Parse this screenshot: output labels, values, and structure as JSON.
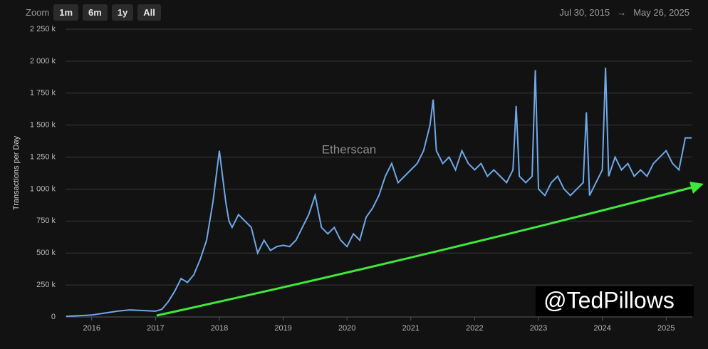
{
  "toolbar": {
    "zoom_label": "Zoom",
    "buttons": [
      "1m",
      "6m",
      "1y",
      "All"
    ],
    "range_start": "Jul 30, 2015",
    "range_arrow": "→",
    "range_end": "May 26, 2025"
  },
  "watermark": "Etherscan",
  "credit": "@TedPillows",
  "chart_data": {
    "type": "line",
    "y_label": "Transactions per Day",
    "x": [
      2015.6,
      2015.8,
      2016.0,
      2016.2,
      2016.4,
      2016.6,
      2016.8,
      2017.0,
      2017.1,
      2017.2,
      2017.3,
      2017.4,
      2017.5,
      2017.6,
      2017.7,
      2017.8,
      2017.9,
      2018.0,
      2018.05,
      2018.1,
      2018.15,
      2018.2,
      2018.3,
      2018.4,
      2018.5,
      2018.6,
      2018.7,
      2018.8,
      2018.9,
      2019.0,
      2019.1,
      2019.2,
      2019.3,
      2019.4,
      2019.5,
      2019.6,
      2019.7,
      2019.8,
      2019.9,
      2020.0,
      2020.1,
      2020.2,
      2020.3,
      2020.4,
      2020.5,
      2020.6,
      2020.7,
      2020.8,
      2020.9,
      2021.0,
      2021.1,
      2021.2,
      2021.3,
      2021.35,
      2021.4,
      2021.5,
      2021.6,
      2021.7,
      2021.8,
      2021.9,
      2022.0,
      2022.1,
      2022.2,
      2022.3,
      2022.4,
      2022.5,
      2022.6,
      2022.65,
      2022.7,
      2022.8,
      2022.9,
      2022.95,
      2023.0,
      2023.1,
      2023.2,
      2023.3,
      2023.4,
      2023.5,
      2023.6,
      2023.7,
      2023.75,
      2023.8,
      2023.9,
      2024.0,
      2024.05,
      2024.1,
      2024.2,
      2024.3,
      2024.4,
      2024.5,
      2024.6,
      2024.7,
      2024.8,
      2024.9,
      2025.0,
      2025.1,
      2025.2,
      2025.3,
      2025.4
    ],
    "series": [
      {
        "name": "Transactions",
        "color": "#6fa8e8",
        "values": [
          5000,
          10000,
          15000,
          30000,
          45000,
          55000,
          50000,
          45000,
          60000,
          120000,
          200000,
          300000,
          270000,
          330000,
          450000,
          600000,
          900000,
          1300000,
          1100000,
          900000,
          750000,
          700000,
          800000,
          750000,
          700000,
          500000,
          600000,
          520000,
          550000,
          560000,
          550000,
          600000,
          700000,
          800000,
          950000,
          700000,
          650000,
          700000,
          600000,
          550000,
          650000,
          600000,
          780000,
          850000,
          950000,
          1100000,
          1200000,
          1050000,
          1100000,
          1150000,
          1200000,
          1300000,
          1500000,
          1700000,
          1300000,
          1200000,
          1250000,
          1150000,
          1300000,
          1200000,
          1150000,
          1200000,
          1100000,
          1150000,
          1100000,
          1050000,
          1150000,
          1650000,
          1100000,
          1050000,
          1100000,
          1930000,
          1000000,
          950000,
          1050000,
          1100000,
          1000000,
          950000,
          1000000,
          1050000,
          1600000,
          950000,
          1050000,
          1150000,
          1950000,
          1100000,
          1250000,
          1150000,
          1200000,
          1100000,
          1150000,
          1100000,
          1200000,
          1250000,
          1300000,
          1200000,
          1150000,
          1400000,
          1400000
        ]
      }
    ],
    "xlim": [
      2015.59,
      2025.41
    ],
    "xticks": [
      2016,
      2017,
      2018,
      2019,
      2020,
      2021,
      2022,
      2023,
      2024,
      2025
    ],
    "ylim": [
      0,
      2250000
    ],
    "yticks": [
      {
        "value": 0,
        "label": "0"
      },
      {
        "value": 250000,
        "label": "250 k"
      },
      {
        "value": 500000,
        "label": "500 k"
      },
      {
        "value": 750000,
        "label": "750 k"
      },
      {
        "value": 1000000,
        "label": "1 000 k"
      },
      {
        "value": 1250000,
        "label": "1 250 k"
      },
      {
        "value": 1500000,
        "label": "1 500 k"
      },
      {
        "value": 1750000,
        "label": "1 750 k"
      },
      {
        "value": 2000000,
        "label": "2 000 k"
      },
      {
        "value": 2250000,
        "label": "2 250 k"
      }
    ],
    "grid": true
  }
}
